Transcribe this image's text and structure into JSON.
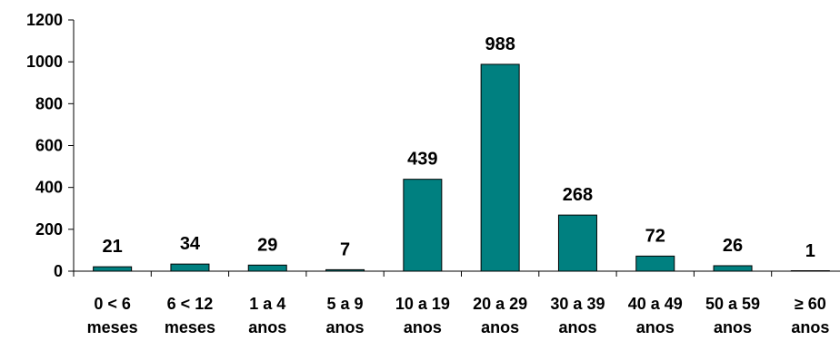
{
  "chart_data": {
    "type": "bar",
    "categories": [
      [
        "0 < 6",
        "meses"
      ],
      [
        "6 < 12",
        "meses"
      ],
      [
        "1 a 4",
        "anos"
      ],
      [
        "5 a 9",
        "anos"
      ],
      [
        "10 a 19",
        "anos"
      ],
      [
        "20 a 29",
        "anos"
      ],
      [
        "30 a 39",
        "anos"
      ],
      [
        "40 a 49",
        "anos"
      ],
      [
        "50 a 59",
        "anos"
      ],
      [
        "≥ 60",
        "anos"
      ]
    ],
    "values": [
      21,
      34,
      29,
      7,
      439,
      988,
      268,
      72,
      26,
      1
    ],
    "ylim": [
      0,
      1200
    ],
    "yticks": [
      0,
      200,
      400,
      600,
      800,
      1000,
      1200
    ],
    "grid": false,
    "bar_color": "#008080",
    "title": "",
    "xlabel": "",
    "ylabel": ""
  }
}
